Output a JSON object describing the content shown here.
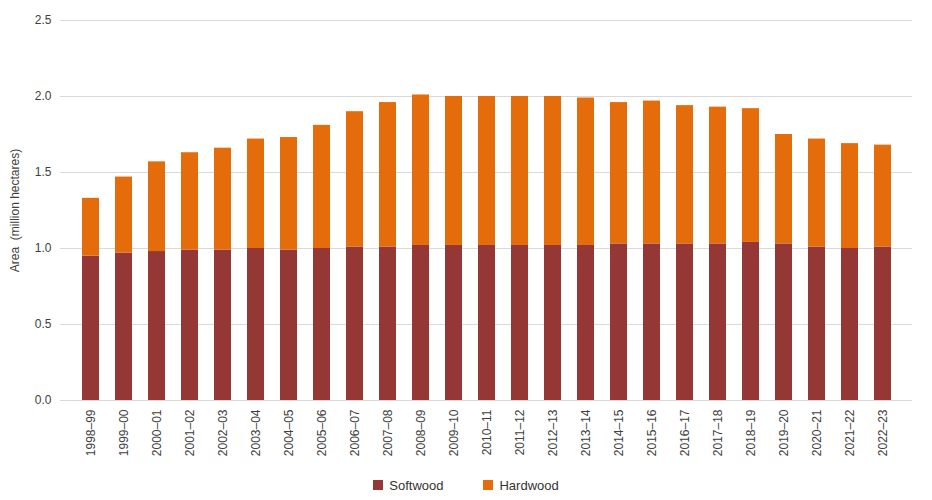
{
  "chart_data": {
    "type": "bar",
    "stacked": true,
    "grid": true,
    "legend": "bottom",
    "y_label": "Area  (million hectares)",
    "categories": [
      "1998–99",
      "1999–00",
      "2000–01",
      "2001–02",
      "2002–03",
      "2003–04",
      "2004–05",
      "2005–06",
      "2006–07",
      "2007–08",
      "2008–09",
      "2009–10",
      "2010–11",
      "2011–12",
      "2012–13",
      "2013–14",
      "2014–15",
      "2015–16",
      "2016–17",
      "2017–18",
      "2018–19",
      "2019–20",
      "2020–21",
      "2021–22",
      "2022–23"
    ],
    "series": [
      {
        "name": "Softwood",
        "color": "#953735",
        "values": [
          0.95,
          0.97,
          0.98,
          0.99,
          0.99,
          1.0,
          0.99,
          1.0,
          1.01,
          1.01,
          1.02,
          1.02,
          1.02,
          1.02,
          1.02,
          1.02,
          1.03,
          1.03,
          1.03,
          1.03,
          1.04,
          1.03,
          1.01,
          1.0,
          1.01
        ]
      },
      {
        "name": "Hardwood",
        "color": "#E46C0A",
        "values": [
          0.38,
          0.5,
          0.59,
          0.64,
          0.67,
          0.72,
          0.74,
          0.81,
          0.89,
          0.95,
          0.99,
          0.98,
          0.98,
          0.98,
          0.98,
          0.97,
          0.93,
          0.94,
          0.91,
          0.9,
          0.88,
          0.72,
          0.71,
          0.69,
          0.67
        ]
      }
    ],
    "ylim": [
      0,
      2.5
    ],
    "yticks": [
      {
        "value": 0,
        "label": "0.0"
      },
      0.5,
      {
        "value": 1,
        "label": "1.0"
      },
      1.5,
      {
        "value": 2,
        "label": "2.0"
      },
      2.5
    ]
  }
}
